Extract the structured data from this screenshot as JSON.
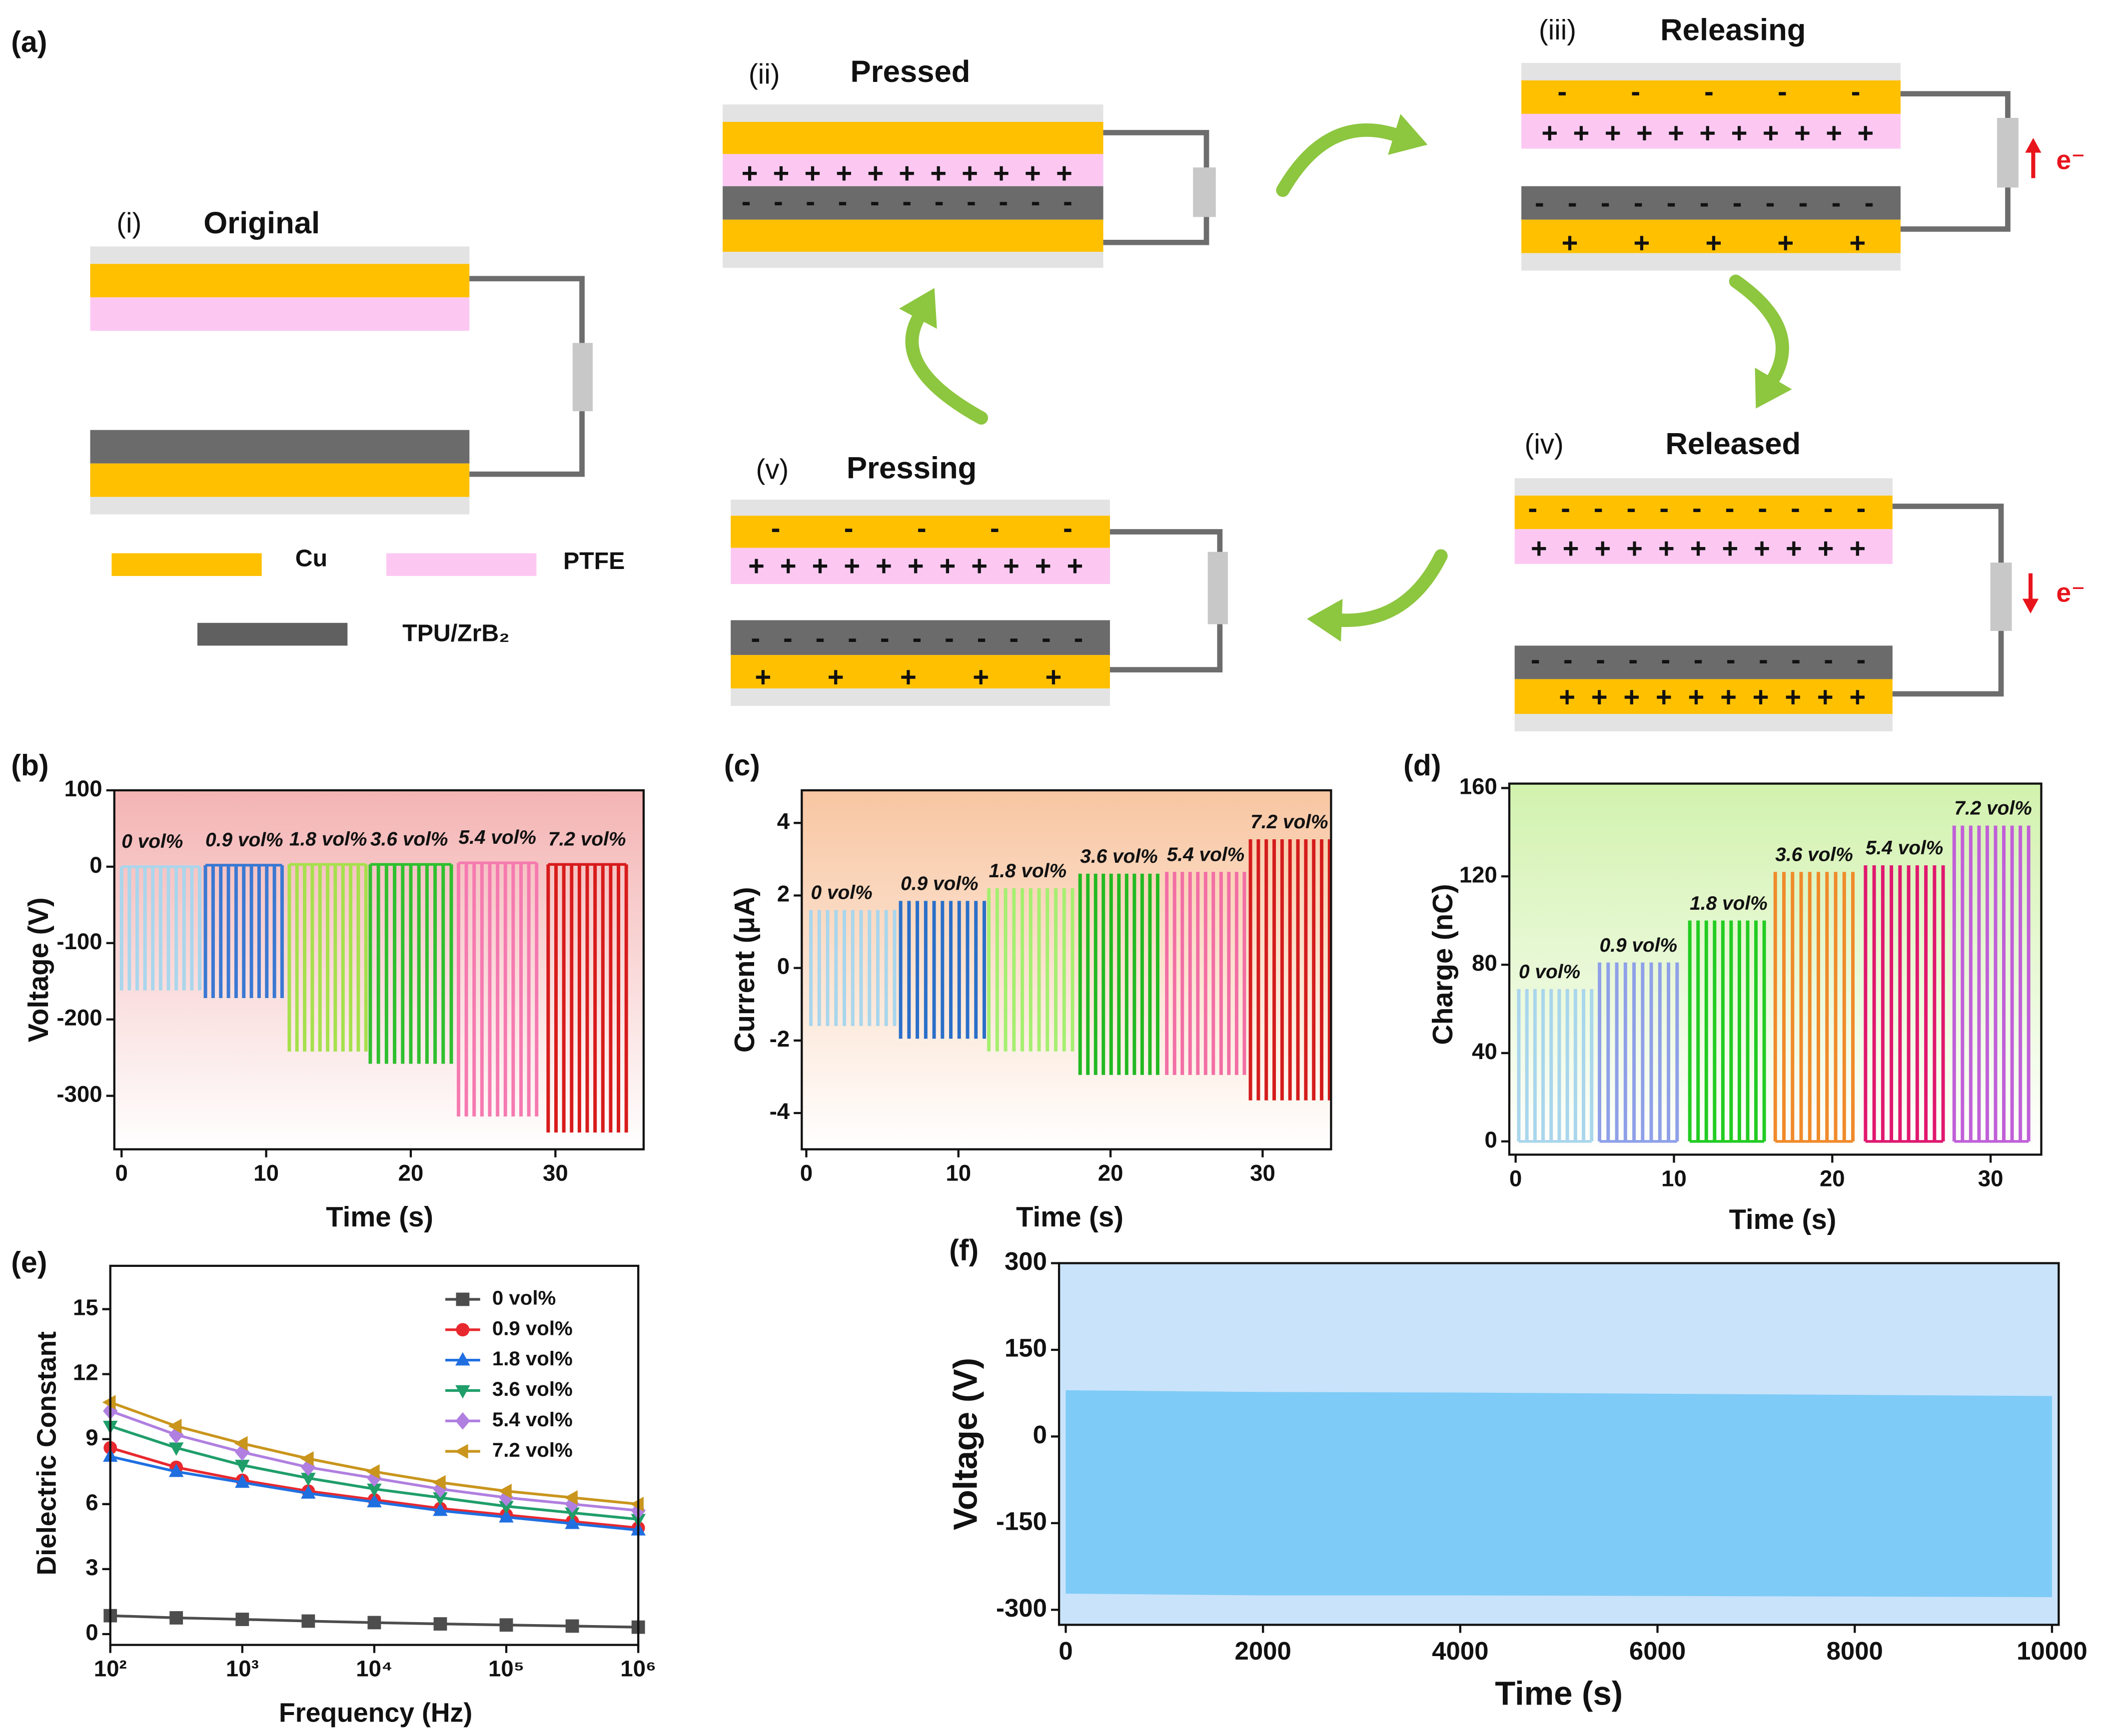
{
  "figure": {
    "panel_label": "(a)",
    "stages": [
      {
        "label": "(i)",
        "title": "Original",
        "rows": []
      },
      {
        "label": "(ii)",
        "title": "Pressed",
        "rows": [
          "+ + + + + + + + + + +",
          "- - - - - - - - - - -"
        ]
      },
      {
        "label": "(iii)",
        "title": "Releasing",
        "rows": [
          "- - - - -",
          "+ + + + + + + + + + +",
          "- - - - - - - - - - -",
          "+ + + + +"
        ]
      },
      {
        "label": "(iv)",
        "title": "Released",
        "rows": [
          "- - - - - - - - - - -",
          "+ + + + + + + + + + +",
          "- - - - - - - - - - -",
          "+ + + + + + + + + +"
        ]
      },
      {
        "label": "(v)",
        "title": "Pressing",
        "rows": [
          "- - - - -",
          "+ + + + + + + + + + +",
          "- - - - - - - - - - -",
          "+ + + + +"
        ]
      }
    ],
    "electron_labels": [
      "e⁻",
      "e⁻"
    ],
    "legend": [
      "Cu",
      "PTFE",
      "TPU/ZrB₂"
    ]
  },
  "chart_data": [
    {
      "type": "pulse",
      "label": "(b)",
      "xlabel": "Time (s)",
      "ylabel": "Voltage (V)",
      "xlim": [
        -0.5,
        36.1
      ],
      "ylim": [
        -370,
        100
      ],
      "xticks": [
        0,
        10,
        20,
        30
      ],
      "yticks": [
        -300,
        -200,
        -100,
        0,
        100
      ],
      "background": "#f4b4b4",
      "cycles": 11,
      "series": [
        {
          "name": "0 vol%",
          "color": "#a9d6ec",
          "x": [
            0,
            5.4
          ],
          "values": [
            0,
            -162
          ]
        },
        {
          "name": "0.9 vol%",
          "color": "#3a78d2",
          "x": [
            5.8,
            11.1
          ],
          "values": [
            2,
            -172
          ]
        },
        {
          "name": "1.8 vol%",
          "color": "#a6e04c",
          "x": [
            11.6,
            16.9
          ],
          "values": [
            3,
            -242
          ]
        },
        {
          "name": "3.6 vol%",
          "color": "#2fbf2f",
          "x": [
            17.2,
            22.8
          ],
          "values": [
            3,
            -258
          ]
        },
        {
          "name": "5.4 vol%",
          "color": "#f57ab0",
          "x": [
            23.3,
            28.7
          ],
          "values": [
            5,
            -327
          ]
        },
        {
          "name": "7.2 vol%",
          "color": "#d81b1b",
          "x": [
            29.5,
            34.9
          ],
          "values": [
            3,
            -348
          ]
        }
      ]
    },
    {
      "type": "pulse",
      "label": "(c)",
      "xlabel": "Time (s)",
      "ylabel": "Current (μA)",
      "xlim": [
        -0.3,
        34.5
      ],
      "ylim": [
        -5,
        4.9
      ],
      "xticks": [
        0,
        10,
        20,
        30
      ],
      "yticks": [
        -4,
        -2,
        0,
        2,
        4
      ],
      "background": "#f8c6a2",
      "cycles": 11,
      "series": [
        {
          "name": "0 vol%",
          "color": "#a9d6ec",
          "x": [
            0.3,
            5.8
          ],
          "values": [
            1.6,
            -1.6
          ]
        },
        {
          "name": "0.9 vol%",
          "color": "#2a6fc9",
          "x": [
            6.2,
            11.7
          ],
          "values": [
            1.85,
            -1.95
          ]
        },
        {
          "name": "1.8 vol%",
          "color": "#a5ef70",
          "x": [
            12,
            17.5
          ],
          "values": [
            2.2,
            -2.3
          ]
        },
        {
          "name": "3.6 vol%",
          "color": "#22b922",
          "x": [
            18,
            23.1
          ],
          "values": [
            2.6,
            -2.95
          ]
        },
        {
          "name": "5.4 vol%",
          "color": "#f26fa5",
          "x": [
            23.7,
            28.8
          ],
          "values": [
            2.65,
            -2.95
          ]
        },
        {
          "name": "7.2 vol%",
          "color": "#d41c1c",
          "x": [
            29.2,
            34.4
          ],
          "values": [
            3.55,
            -3.65
          ]
        }
      ]
    },
    {
      "type": "pulse",
      "label": "(d)",
      "xlabel": "Time (s)",
      "ylabel": "Charge (nC)",
      "xlim": [
        -0.4,
        33.2
      ],
      "ylim": [
        -6,
        162
      ],
      "xticks": [
        0,
        10,
        20,
        30
      ],
      "yticks": [
        0,
        40,
        80,
        120,
        160
      ],
      "background": "#d2f2ae",
      "cycles": 10,
      "series": [
        {
          "name": "0 vol%",
          "color": "#a9d6ec",
          "x": [
            0.2,
            4.8
          ],
          "values": [
            69,
            0
          ]
        },
        {
          "name": "0.9 vol%",
          "color": "#8fa0e8",
          "x": [
            5.3,
            10.2
          ],
          "values": [
            81,
            0
          ]
        },
        {
          "name": "1.8 vol%",
          "color": "#22cc22",
          "x": [
            11,
            15.7
          ],
          "values": [
            100,
            0
          ]
        },
        {
          "name": "3.6 vol%",
          "color": "#f08a2a",
          "x": [
            16.4,
            21.3
          ],
          "values": [
            122,
            0
          ]
        },
        {
          "name": "5.4 vol%",
          "color": "#e0186e",
          "x": [
            22.1,
            27
          ],
          "values": [
            125,
            0
          ]
        },
        {
          "name": "7.2 vol%",
          "color": "#c060d8",
          "x": [
            27.7,
            32.4
          ],
          "values": [
            143,
            0
          ]
        }
      ]
    },
    {
      "type": "line",
      "label": "(e)",
      "xlabel": "Frequency (Hz)",
      "ylabel": "Dielectric Constant",
      "xlog": true,
      "xlim": [
        100,
        1000000
      ],
      "ylim": [
        -0.5,
        17
      ],
      "xticks": [
        {
          "value": 100,
          "label": "10²"
        },
        {
          "value": 1000,
          "label": "10³"
        },
        {
          "value": 10000,
          "label": "10⁴"
        },
        {
          "value": 100000,
          "label": "10⁵"
        },
        {
          "value": 1000000,
          "label": "10⁶"
        }
      ],
      "yticks": [
        0,
        3,
        6,
        9,
        12,
        15
      ],
      "legend": "upper right",
      "x": [
        100,
        316,
        1000,
        3162,
        10000,
        31623,
        100000,
        316228,
        1000000
      ],
      "series": [
        {
          "name": "0 vol%",
          "color": "#4d4d4d",
          "marker": "square",
          "values": [
            0.85,
            0.75,
            0.68,
            0.6,
            0.53,
            0.47,
            0.42,
            0.37,
            0.32
          ]
        },
        {
          "name": "0.9 vol%",
          "color": "#e8282f",
          "marker": "circle",
          "values": [
            8.6,
            7.7,
            7.1,
            6.6,
            6.2,
            5.8,
            5.5,
            5.2,
            4.9
          ]
        },
        {
          "name": "1.8 vol%",
          "color": "#1f6fe0",
          "marker": "triangle-up",
          "values": [
            8.2,
            7.5,
            7.0,
            6.5,
            6.1,
            5.7,
            5.4,
            5.1,
            4.8
          ]
        },
        {
          "name": "3.6 vol%",
          "color": "#1f9e6a",
          "marker": "triangle-down",
          "values": [
            9.6,
            8.6,
            7.8,
            7.2,
            6.7,
            6.3,
            5.9,
            5.6,
            5.3
          ]
        },
        {
          "name": "5.4 vol%",
          "color": "#b07fe0",
          "marker": "diamond",
          "values": [
            10.3,
            9.2,
            8.4,
            7.7,
            7.2,
            6.7,
            6.3,
            6.0,
            5.7
          ]
        },
        {
          "name": "7.2 vol%",
          "color": "#c9951c",
          "marker": "triangle-left",
          "values": [
            10.7,
            9.6,
            8.8,
            8.1,
            7.5,
            7.0,
            6.6,
            6.3,
            6.0
          ]
        }
      ]
    },
    {
      "type": "area",
      "label": "(f)",
      "xlabel": "Time (s)",
      "ylabel": "Voltage (V)",
      "xlim": [
        -68,
        10068
      ],
      "ylim": [
        -326,
        300
      ],
      "xticks": [
        0,
        2000,
        4000,
        6000,
        8000,
        10000
      ],
      "yticks": [
        -300,
        -150,
        0,
        150,
        300
      ],
      "background": "#c9e3fb",
      "color": "#7ecbf7",
      "x": [
        0,
        2000,
        4000,
        6000,
        8000,
        10000
      ],
      "high": [
        80,
        77,
        76,
        74,
        72,
        70
      ],
      "low": [
        -272,
        -275,
        -275,
        -276,
        -277,
        -278
      ]
    }
  ]
}
